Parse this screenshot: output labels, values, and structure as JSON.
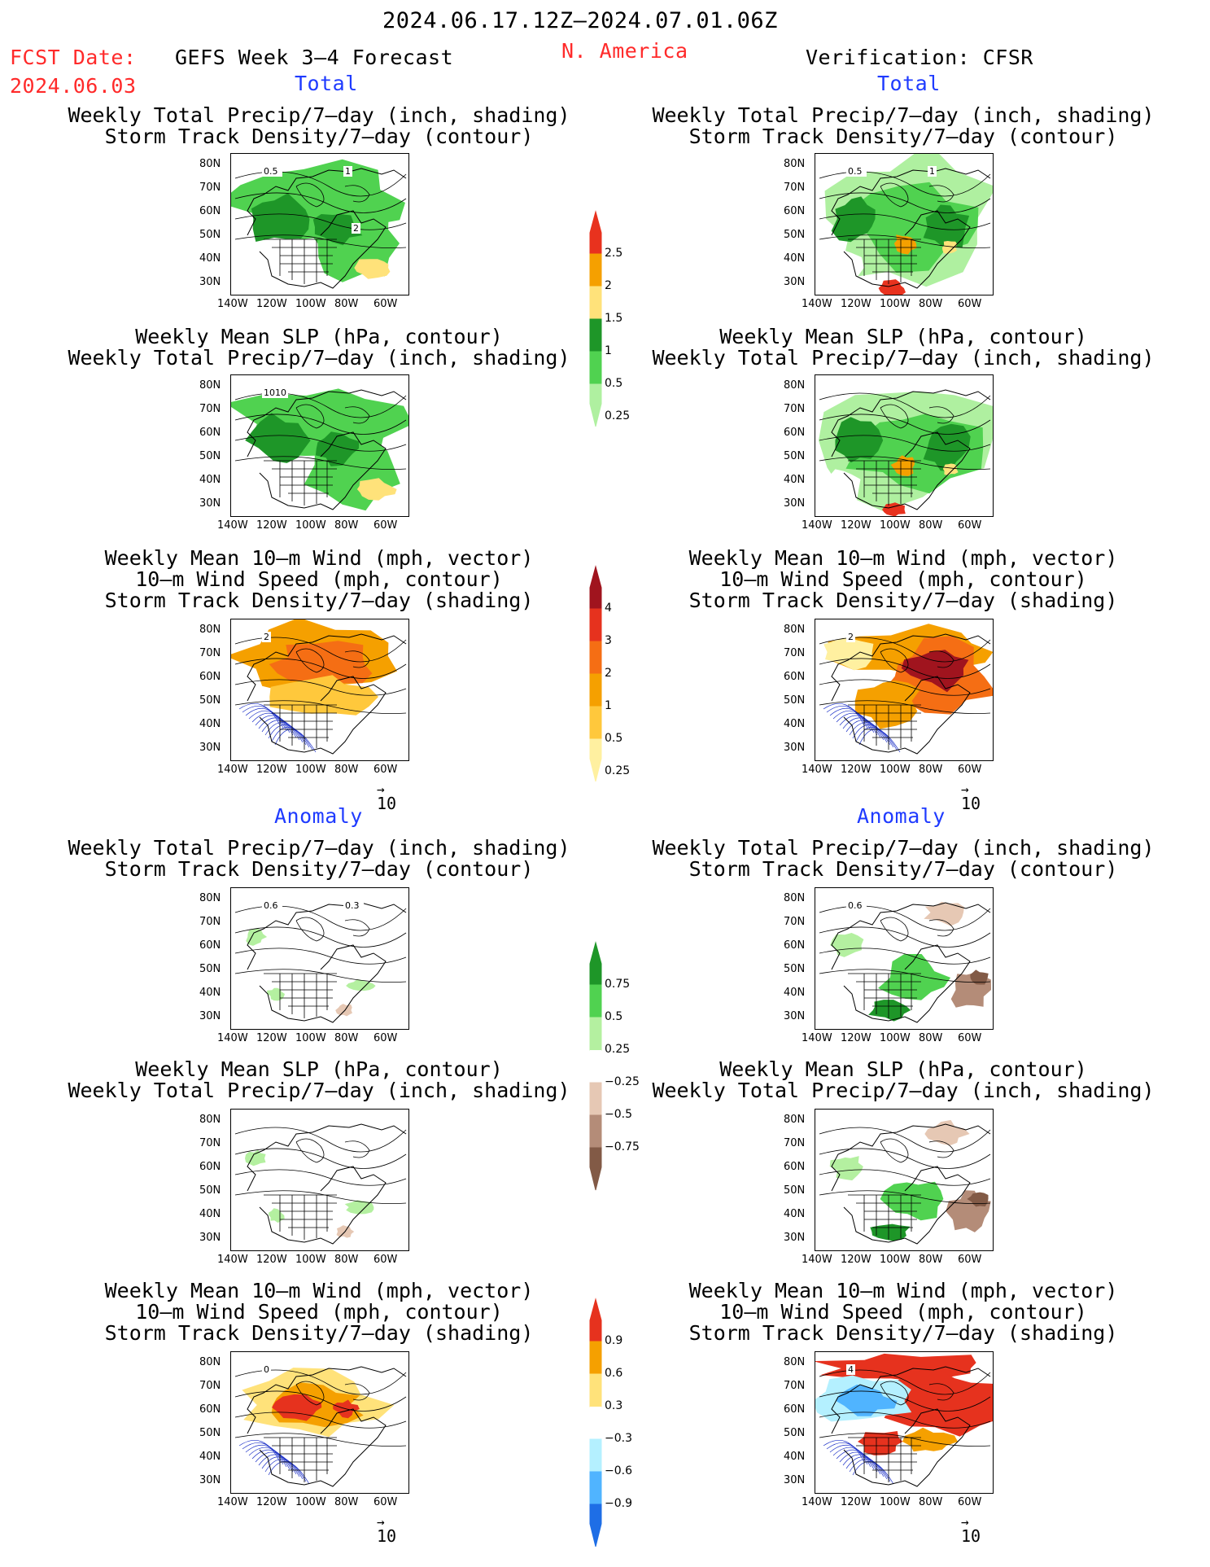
{
  "header": {
    "date_range": "2024.06.17.12Z–2024.07.01.06Z",
    "fcst_label": "FCST Date:",
    "fcst_date": "2024.06.03",
    "forecast_name": "GEFS Week 3–4 Forecast",
    "region": "N. America",
    "verification": "Verification: CFSR"
  },
  "sections": {
    "total": "Total",
    "anomaly": "Anomaly"
  },
  "panel_titles": {
    "precip_storm": [
      "Weekly Total Precip/7–day (inch, shading)",
      "Storm Track Density/7–day (contour)"
    ],
    "slp_precip": [
      "Weekly Mean SLP (hPa, contour)",
      "Weekly Total Precip/7–day (inch, shading)"
    ],
    "wind_storm": [
      "Weekly Mean 10–m Wind (mph, vector)",
      "10–m Wind Speed (mph, contour)",
      "Storm Track Density/7–day (shading)"
    ]
  },
  "axes": {
    "lat_labels": [
      "80N",
      "70N",
      "60N",
      "50N",
      "40N",
      "30N"
    ],
    "lon_labels": [
      "140W",
      "120W",
      "100W",
      "80W",
      "60W"
    ]
  },
  "vector_ref": "10",
  "contour_labels": {
    "r1_left": [
      "0.5",
      "1",
      "2"
    ],
    "r1_right": [
      "0.5",
      "1"
    ],
    "r2_left": [
      "1010"
    ],
    "r3_left": [
      "2"
    ],
    "r3_right": [
      "2"
    ],
    "r4_left": [
      "0.6",
      "0.3"
    ],
    "r4_right": [
      "0.6"
    ],
    "r6_left": [
      "0"
    ],
    "r6_right": [
      "4"
    ]
  },
  "colorbars": {
    "precip_total": {
      "labels": [
        "2.5",
        "2",
        "1.5",
        "1",
        "0.5",
        "0.25"
      ],
      "colors": [
        "#e8321e",
        "#f5a000",
        "#ffe27a",
        "#1e9628",
        "#50d250",
        "#aff0a0"
      ]
    },
    "storm_total": {
      "labels": [
        "4",
        "3",
        "2",
        "1",
        "0.5",
        "0.25"
      ],
      "colors": [
        "#a0141e",
        "#e6321e",
        "#f56e14",
        "#f5a000",
        "#ffc83c",
        "#fff0a0"
      ]
    },
    "precip_anom": {
      "labels": [
        "0.75",
        "0.5",
        "0.25",
        "−0.25",
        "−0.5",
        "−0.75"
      ],
      "colors": [
        "#1e9628",
        "#50d250",
        "#b4f0a0",
        "#ffffff",
        "#e6c8b4",
        "#b48c78",
        "#825a46"
      ]
    },
    "storm_anom": {
      "labels": [
        "0.9",
        "0.6",
        "0.3",
        "−0.3",
        "−0.6",
        "−0.9"
      ],
      "colors": [
        "#e6321e",
        "#f5a000",
        "#ffe27a",
        "#ffffff",
        "#b4f0ff",
        "#50b4ff",
        "#1e6ee6"
      ]
    }
  }
}
